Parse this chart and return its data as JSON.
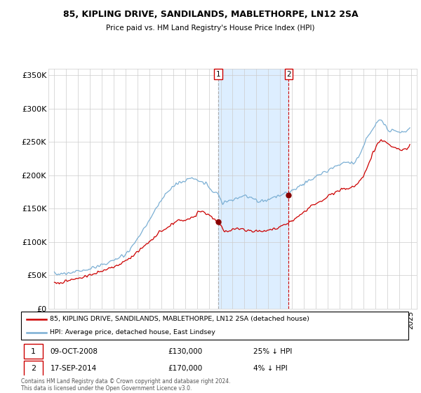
{
  "title": "85, KIPLING DRIVE, SANDILANDS, MABLETHORPE, LN12 2SA",
  "subtitle": "Price paid vs. HM Land Registry's House Price Index (HPI)",
  "legend_property": "85, KIPLING DRIVE, SANDILANDS, MABLETHORPE, LN12 2SA (detached house)",
  "legend_hpi": "HPI: Average price, detached house, East Lindsey",
  "sale1_date_label": "09-OCT-2008",
  "sale1_price": 130000,
  "sale1_hpi_pct": "25% ↓ HPI",
  "sale2_date_label": "17-SEP-2014",
  "sale2_price": 170000,
  "sale2_hpi_pct": "4% ↓ HPI",
  "footnote": "Contains HM Land Registry data © Crown copyright and database right 2024.\nThis data is licensed under the Open Government Licence v3.0.",
  "property_color": "#cc0000",
  "hpi_color": "#7bafd4",
  "shade_color": "#ddeeff",
  "sale_dot_color": "#880000",
  "vline1_color": "#999999",
  "vline2_color": "#cc0000",
  "ylim": [
    0,
    360000
  ],
  "yticks": [
    0,
    50000,
    100000,
    150000,
    200000,
    250000,
    300000,
    350000
  ],
  "sale1_x": 2008.77,
  "sale2_x": 2014.72,
  "xmin": 1994.5,
  "xmax": 2025.5
}
